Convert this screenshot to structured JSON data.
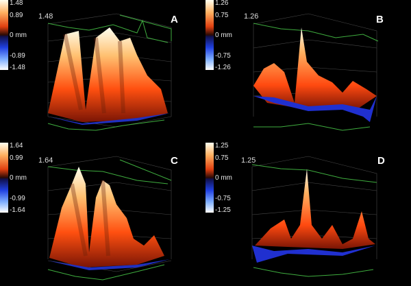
{
  "panels": [
    {
      "letter": "A",
      "scale": {
        "max": "1.48",
        "mid_pos": "0.89",
        "zero": "0 mm",
        "mid_neg": "-0.89",
        "min": "-1.48"
      },
      "peak_label": "1.48"
    },
    {
      "letter": "B",
      "scale": {
        "max": "1.26",
        "mid_pos": "0.75",
        "zero": "0 mm",
        "mid_neg": "-0.75",
        "min": "-1.26"
      },
      "peak_label": "1.26"
    },
    {
      "letter": "C",
      "scale": {
        "max": "1.64",
        "mid_pos": "0.99",
        "zero": "0 mm",
        "mid_neg": "-0.99",
        "min": "-1.64"
      },
      "peak_label": "1.64"
    },
    {
      "letter": "D",
      "scale": {
        "max": "1.25",
        "mid_pos": "0.75",
        "zero": "0 mm",
        "mid_neg": "-0.75",
        "min": "-1.25"
      },
      "peak_label": "1.25"
    }
  ],
  "colors": {
    "surface_hot": "#ffffe0",
    "surface_mid": "#ff6a10",
    "surface_low": "#8a1a05",
    "surface_neg": "#2030d0",
    "trace": "#3fae3f",
    "grid": "#5a5a5a"
  }
}
